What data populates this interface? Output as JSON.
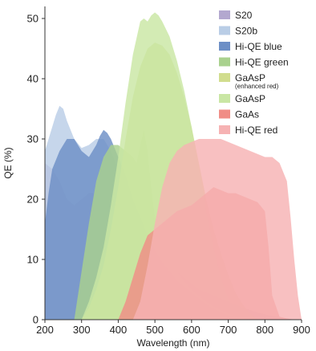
{
  "chart_data": {
    "type": "area",
    "xlabel": "Wavelength (nm)",
    "ylabel": "QE (%)",
    "xlim": [
      200,
      900
    ],
    "ylim": [
      0,
      52
    ],
    "x_ticks": [
      200,
      300,
      400,
      500,
      600,
      700,
      800,
      900
    ],
    "y_ticks": [
      0,
      10,
      20,
      30,
      40,
      50
    ],
    "grid": false,
    "legend_position": "top-right",
    "series": [
      {
        "name": "S20",
        "sub": "",
        "color": "#b3a8cf",
        "x": [
          200,
          220,
          240,
          260,
          280,
          300,
          320,
          340,
          360,
          380,
          400,
          420,
          440,
          460,
          480,
          500,
          520,
          540,
          560,
          580,
          600,
          620,
          640,
          660,
          680,
          700,
          720,
          740,
          760,
          780,
          800,
          820,
          840,
          860,
          880
        ],
        "y": [
          26,
          25,
          23,
          20,
          19,
          20,
          21,
          21,
          20.5,
          21,
          21,
          20,
          19,
          17,
          15,
          13,
          11,
          9.5,
          8,
          7,
          6,
          5,
          4.5,
          4,
          3.5,
          3,
          2.5,
          2,
          1.6,
          1.2,
          0.9,
          0.6,
          0.4,
          0.2,
          0
        ]
      },
      {
        "name": "S20b",
        "sub": "",
        "color": "#b9cde6",
        "x": [
          200,
          210,
          220,
          230,
          240,
          250,
          260,
          280,
          300,
          320,
          340,
          360,
          380,
          400,
          420,
          440,
          460,
          480,
          500,
          520,
          540,
          560,
          580,
          600,
          620,
          640,
          660,
          680,
          700
        ],
        "y": [
          28,
          30,
          32,
          34,
          35.5,
          35,
          33,
          30,
          28.5,
          29,
          30,
          30,
          28,
          25,
          22,
          19,
          16,
          13,
          10,
          8,
          6.5,
          5,
          4,
          3,
          2.2,
          1.5,
          0.9,
          0.4,
          0
        ]
      },
      {
        "name": "Hi-QE blue",
        "sub": "",
        "color": "#6d8fc6",
        "x": [
          200,
          210,
          220,
          240,
          260,
          280,
          300,
          320,
          340,
          350,
          360,
          370,
          380,
          400,
          420,
          440,
          460,
          480,
          500,
          520,
          540,
          560,
          580,
          600,
          620,
          640,
          660,
          680,
          700,
          720,
          740
        ],
        "y": [
          16,
          21,
          25,
          28,
          30,
          30,
          28,
          27,
          29,
          30.5,
          31.5,
          31,
          30,
          27,
          24,
          20,
          17,
          14,
          11.5,
          9.5,
          8,
          6.5,
          5.5,
          4.5,
          3.5,
          2.5,
          1.8,
          1.2,
          0.7,
          0.3,
          0
        ]
      },
      {
        "name": "Hi-QE green",
        "sub": "",
        "color": "#a9d18e",
        "x": [
          280,
          300,
          320,
          340,
          360,
          380,
          400,
          420,
          440,
          450,
          460,
          470,
          480,
          490,
          500,
          520,
          540,
          560,
          580,
          600,
          620,
          640,
          660,
          680,
          700,
          720,
          740,
          760
        ],
        "y": [
          0,
          8,
          16,
          23,
          27,
          29,
          29,
          28,
          27,
          26,
          29,
          31.5,
          28,
          22,
          17,
          13,
          10,
          8,
          6.5,
          5,
          4,
          3,
          2.2,
          1.6,
          1,
          0.6,
          0.3,
          0
        ]
      },
      {
        "name": "GaAsP",
        "sub": "(enhanced red)",
        "color": "#d1dd8e",
        "x": [
          300,
          320,
          340,
          360,
          380,
          400,
          420,
          440,
          460,
          480,
          500,
          520,
          540,
          560,
          580,
          600,
          620,
          640,
          660,
          680,
          700,
          720,
          740,
          760,
          780
        ],
        "y": [
          0,
          2,
          5,
          9,
          15,
          22,
          30,
          37,
          42,
          45,
          46,
          45.5,
          44,
          41,
          37,
          32,
          26,
          20,
          15,
          11,
          7.5,
          4.5,
          2.5,
          1,
          0
        ]
      },
      {
        "name": "GaAsP",
        "sub": "",
        "color": "#c9e6a4",
        "x": [
          300,
          320,
          340,
          360,
          380,
          400,
          420,
          440,
          460,
          470,
          480,
          490,
          500,
          510,
          520,
          540,
          560,
          580,
          600,
          620,
          640,
          660,
          680,
          700,
          720,
          740,
          760
        ],
        "y": [
          0,
          3,
          7,
          12,
          19,
          27,
          36,
          44,
          49.5,
          50,
          49.5,
          50.5,
          51,
          50.5,
          49.5,
          47,
          43,
          38,
          32,
          25,
          18,
          12,
          7,
          3.5,
          1.5,
          0.5,
          0
        ]
      },
      {
        "name": "GaAs",
        "sub": "",
        "color": "#f08d86",
        "x": [
          400,
          420,
          440,
          460,
          480,
          500,
          520,
          540,
          560,
          580,
          600,
          620,
          640,
          660,
          680,
          700,
          720,
          740,
          760,
          780,
          800,
          810,
          820,
          840,
          860,
          870,
          880
        ],
        "y": [
          0,
          3,
          7,
          11,
          14,
          15,
          16,
          17,
          18,
          18.5,
          19,
          20,
          21,
          22,
          21.5,
          21,
          21,
          20.5,
          20,
          19.5,
          18,
          12,
          4,
          0.5,
          0.2,
          0.1,
          0
        ]
      },
      {
        "name": "Hi-QE red",
        "sub": "",
        "color": "#f6b2b3",
        "x": [
          440,
          460,
          480,
          500,
          520,
          540,
          560,
          580,
          600,
          620,
          640,
          660,
          680,
          700,
          720,
          740,
          760,
          780,
          800,
          820,
          840,
          860,
          870,
          880,
          890,
          900
        ],
        "y": [
          0,
          3,
          9,
          16,
          22,
          26,
          28,
          29,
          29.5,
          30,
          30,
          30,
          30,
          29.5,
          29,
          28.5,
          28,
          27.5,
          27,
          27,
          26,
          23,
          17,
          10,
          4,
          0
        ]
      }
    ]
  }
}
